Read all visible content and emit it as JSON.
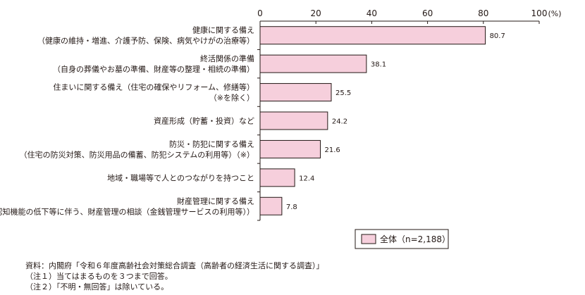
{
  "chart_data": {
    "type": "bar",
    "orientation": "horizontal",
    "categories": [
      [
        "健康に関する備え",
        "（健康の維持・増進、介護予防、保険、病気やけがの治療等）"
      ],
      [
        "終活関係の準備",
        "（自身の葬儀やお墓の準備、財産等の整理・相続の準備）"
      ],
      [
        "住まいに関する備え（住宅の確保やリフォーム、修繕等）",
        "（※を除く）"
      ],
      [
        "資産形成（貯蓄・投資）など"
      ],
      [
        "防災・防犯に関する備え",
        "（住宅の防災対策、防災用品の備蓄、防犯システムの利用等）（※）"
      ],
      [
        "地域・職場等で人とのつながりを持つこと"
      ],
      [
        "財産管理に関する備え",
        "（認知機能の低下等に伴う、財産管理の相談（金銭管理サービスの利用等））"
      ]
    ],
    "series": [
      {
        "name": "全体（n=2,188）",
        "values": [
          80.7,
          38.1,
          25.5,
          24.2,
          21.6,
          12.4,
          7.8
        ]
      }
    ],
    "xlim": [
      0,
      100
    ],
    "ticks": [
      "0",
      "20",
      "40",
      "60",
      "80",
      "100"
    ],
    "unit": "(%)",
    "grid": false,
    "legend": "bottom-right"
  },
  "colors": {
    "bar_fill": "#f6cfdc",
    "bar_stroke": "#231815"
  },
  "notes": [
    "資料：内閣府「令和６年度高齢社会対策総合調査（高齢者の経済生活に関する調査）」",
    "（注１）当てはまるものを３つまで回答。",
    "（注２）「不明・無回答」は除いている。"
  ]
}
